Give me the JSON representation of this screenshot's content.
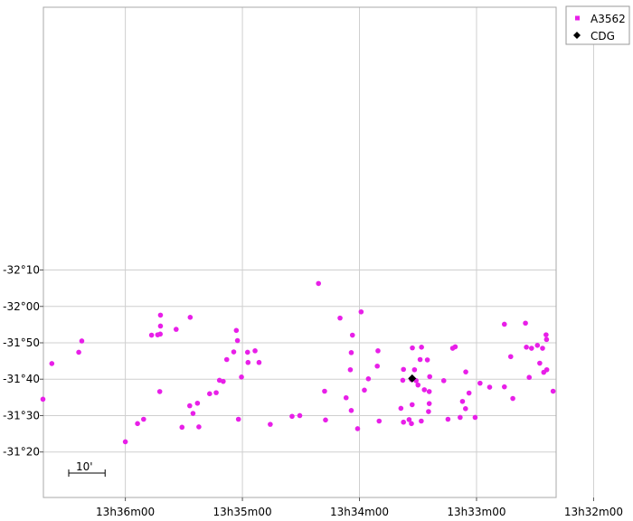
{
  "chart_data": {
    "type": "scatter",
    "grid": true,
    "legend_placement": "top-right",
    "x_unit": "min",
    "y_unit": "arcmin",
    "xlim": [
      -10.5,
      -32.4
    ],
    "ylim": [
      -202.2,
      -67.5
    ],
    "x_ticks": [
      {
        "value": -14,
        "label": "13h36m00"
      },
      {
        "value": -19,
        "label": "13h35m00"
      },
      {
        "value": -24,
        "label": "13h34m00"
      },
      {
        "value": -29,
        "label": "13h33m00"
      },
      {
        "value": -34,
        "label": "13h32m00"
      }
    ],
    "y_ticks": [
      {
        "value": -80,
        "label": "-31°20"
      },
      {
        "value": -90,
        "label": "-31°30"
      },
      {
        "value": -100,
        "label": "-31°40"
      },
      {
        "value": -110,
        "label": "-31°50"
      },
      {
        "value": -120,
        "label": "-32°00"
      },
      {
        "value": -130,
        "label": "-32°10"
      }
    ],
    "scale_bar": {
      "label": "10'",
      "length_arcmin": 10
    },
    "series": [
      {
        "name": "A3562",
        "color": "#e81fe8",
        "marker": "circle",
        "points": [
          [
            -14.0,
            -82.8
          ],
          [
            -14.52,
            -87.8
          ],
          [
            -14.78,
            -89.0
          ],
          [
            -16.42,
            -86.8
          ],
          [
            -17.14,
            -86.9
          ],
          [
            -20.19,
            -87.6
          ],
          [
            -18.83,
            -89.0
          ],
          [
            -21.12,
            -89.8
          ],
          [
            -22.55,
            -88.8
          ],
          [
            -23.92,
            -86.4
          ],
          [
            -24.84,
            -88.5
          ],
          [
            -25.88,
            -88.2
          ],
          [
            -26.22,
            -87.8
          ],
          [
            -26.64,
            -88.5
          ],
          [
            -26.12,
            -88.9
          ],
          [
            -27.78,
            -89.0
          ],
          [
            -28.3,
            -89.5
          ],
          [
            -28.94,
            -89.5
          ],
          [
            -26.95,
            -91.1
          ],
          [
            -25.77,
            -92.0
          ],
          [
            -26.25,
            -93.0
          ],
          [
            -26.98,
            -93.3
          ],
          [
            -28.53,
            -91.9
          ],
          [
            -28.4,
            -93.9
          ],
          [
            -28.68,
            -96.2
          ],
          [
            -26.98,
            -96.6
          ],
          [
            -26.77,
            -97.1
          ],
          [
            -26.5,
            -98.4
          ],
          [
            -27.6,
            -99.6
          ],
          [
            -29.15,
            -98.9
          ],
          [
            -29.56,
            -97.8
          ],
          [
            -30.19,
            -97.9
          ],
          [
            -30.55,
            -94.7
          ],
          [
            -32.27,
            -96.7
          ],
          [
            -27.0,
            -100.7
          ],
          [
            -26.42,
            -99.6
          ],
          [
            -25.85,
            -99.7
          ],
          [
            -26.22,
            -99.9
          ],
          [
            -26.35,
            -102.6
          ],
          [
            -26.9,
            -105.3
          ],
          [
            -24.21,
            -97.0
          ],
          [
            -23.43,
            -94.9
          ],
          [
            -23.65,
            -91.4
          ],
          [
            -22.51,
            -96.7
          ],
          [
            -21.45,
            -90.0
          ],
          [
            -16.75,
            -92.7
          ],
          [
            -16.89,
            -90.6
          ],
          [
            -17.08,
            -93.4
          ],
          [
            -17.6,
            -96.0
          ],
          [
            -17.88,
            -96.3
          ],
          [
            -15.47,
            -96.6
          ],
          [
            -18.02,
            -99.7
          ],
          [
            -18.18,
            -99.4
          ],
          [
            -18.96,
            -100.6
          ],
          [
            -18.33,
            -105.4
          ],
          [
            -18.63,
            -107.5
          ],
          [
            -19.22,
            -107.4
          ],
          [
            -19.54,
            -107.8
          ],
          [
            -19.71,
            -104.6
          ],
          [
            -19.24,
            -104.6
          ],
          [
            -18.79,
            -110.6
          ],
          [
            -12.01,
            -107.4
          ],
          [
            -12.14,
            -110.5
          ],
          [
            -10.86,
            -104.3
          ],
          [
            -10.48,
            -94.5
          ],
          [
            -16.17,
            -113.7
          ],
          [
            -15.12,
            -112.1
          ],
          [
            -15.38,
            -112.2
          ],
          [
            -15.49,
            -112.4
          ],
          [
            -15.5,
            -114.6
          ],
          [
            -15.5,
            -117.6
          ],
          [
            -16.77,
            -117.0
          ],
          [
            -18.74,
            -113.4
          ],
          [
            -23.17,
            -116.8
          ],
          [
            -23.61,
            -102.6
          ],
          [
            -23.65,
            -107.3
          ],
          [
            -23.7,
            -112.1
          ],
          [
            -24.07,
            -118.5
          ],
          [
            -24.38,
            -100.1
          ],
          [
            -24.76,
            -103.6
          ],
          [
            -24.79,
            -107.8
          ],
          [
            -25.88,
            -102.7
          ],
          [
            -26.26,
            -108.6
          ],
          [
            -26.59,
            -105.4
          ],
          [
            -26.65,
            -108.8
          ],
          [
            -27.98,
            -108.5
          ],
          [
            -28.09,
            -108.9
          ],
          [
            -28.54,
            -102.0
          ],
          [
            -30.46,
            -106.2
          ],
          [
            -30.19,
            -115.1
          ],
          [
            -31.09,
            -115.4
          ],
          [
            -31.82,
            -108.5
          ],
          [
            -31.13,
            -108.8
          ],
          [
            -31.6,
            -109.3
          ],
          [
            -31.35,
            -108.5
          ],
          [
            -31.25,
            -100.5
          ],
          [
            -31.87,
            -101.9
          ],
          [
            -32.0,
            -102.6
          ],
          [
            -31.7,
            -104.4
          ],
          [
            -31.99,
            -110.9
          ],
          [
            -31.97,
            -112.2
          ],
          [
            -22.25,
            -126.3
          ]
        ]
      },
      {
        "name": "CDG",
        "color": "#000000",
        "marker": "diamond",
        "points": [
          [
            -26.25,
            -100.2
          ]
        ]
      }
    ]
  }
}
